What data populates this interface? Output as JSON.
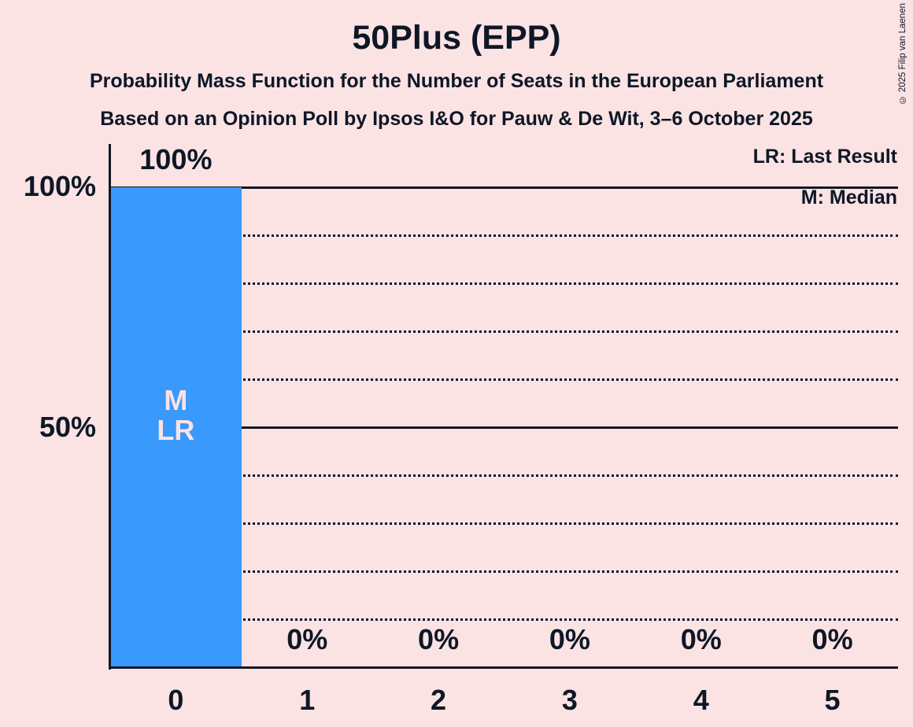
{
  "chart_data": {
    "type": "bar",
    "title": "50Plus (EPP)",
    "subtitles": [
      "Probability Mass Function for the Number of Seats in the European Parliament",
      "Based on an Opinion Poll by Ipsos I&O for Pauw & De Wit, 3–6 October 2025"
    ],
    "categories": [
      "0",
      "1",
      "2",
      "3",
      "4",
      "5"
    ],
    "values": [
      100,
      0,
      0,
      0,
      0,
      0
    ],
    "value_labels": [
      "100%",
      "0%",
      "0%",
      "0%",
      "0%",
      "0%"
    ],
    "xlabel": "",
    "ylabel": "",
    "ylim": [
      0,
      100
    ],
    "y_tick_labels": [
      {
        "value": 100,
        "label": "100%"
      },
      {
        "value": 50,
        "label": "50%"
      }
    ],
    "gridlines": {
      "solid": [
        100,
        50
      ],
      "dotted": [
        90,
        80,
        70,
        60,
        40,
        30,
        20,
        10
      ]
    },
    "grid_on": true,
    "legend_position": "top-right",
    "legend": {
      "lr": "LR: Last Result",
      "m": "M: Median"
    },
    "bar_annotations": [
      {
        "category_index": 0,
        "lines": [
          "M",
          "LR"
        ]
      }
    ],
    "median_seats": 0,
    "last_result_seats": 0,
    "colors": {
      "background": "#fbe3e4",
      "bar": "#3999fc",
      "text": "#0e1726",
      "bar_annotation_text": "#fbe3e4"
    },
    "copyright": "© 2025 Filip van Laenen"
  }
}
